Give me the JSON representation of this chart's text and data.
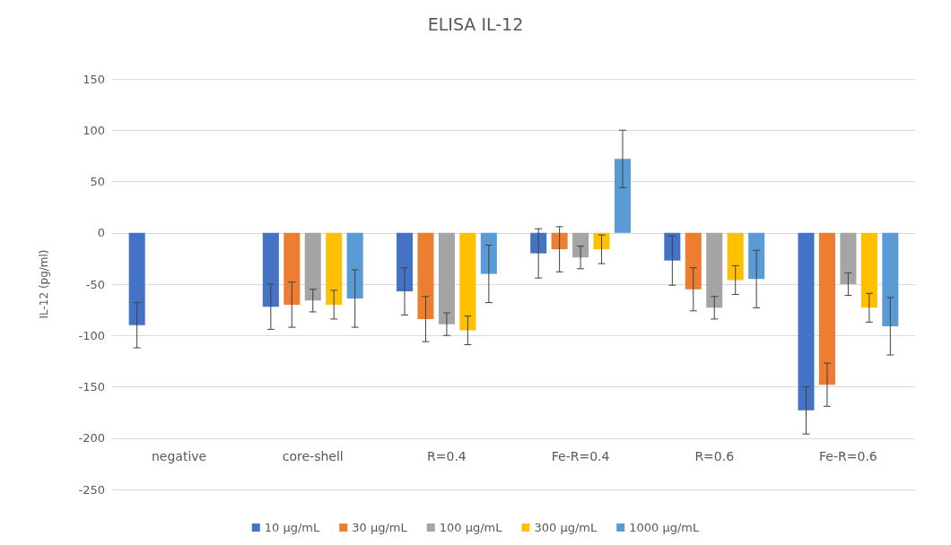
{
  "chart_data": {
    "type": "bar",
    "title": "ELISA IL-12",
    "ylabel": "IL-12 (pg/ml)",
    "categories": [
      "negative",
      "core-shell",
      "R=0.4",
      "Fe-R=0.4",
      "R=0.6",
      "Fe-R=0.6"
    ],
    "series": [
      {
        "name": "10 µg/mL",
        "color": "#4472c4",
        "values": [
          -90,
          -72,
          -57,
          -20,
          -27,
          -173
        ],
        "errors": [
          22,
          22,
          23,
          24,
          24,
          23
        ]
      },
      {
        "name": "30 µg/mL",
        "color": "#ed7d31",
        "values": [
          null,
          -70,
          -84,
          -16,
          -55,
          -148
        ],
        "errors": [
          null,
          22,
          22,
          22,
          21,
          21
        ]
      },
      {
        "name": "100 µg/mL",
        "color": "#a5a5a5",
        "values": [
          null,
          -66,
          -89,
          -24,
          -73,
          -50
        ],
        "errors": [
          null,
          11,
          11,
          11,
          11,
          11
        ]
      },
      {
        "name": "300 µg/mL",
        "color": "#ffc000",
        "values": [
          null,
          -70,
          -95,
          -16,
          -46,
          -73
        ],
        "errors": [
          null,
          14,
          14,
          14,
          14,
          14
        ]
      },
      {
        "name": "1000 µg/mL",
        "color": "#5b9bd5",
        "values": [
          null,
          -64,
          -40,
          72,
          -45,
          -91
        ],
        "errors": [
          null,
          28,
          28,
          28,
          28,
          28
        ]
      }
    ],
    "ylim": [
      -250,
      150
    ],
    "yticks": [
      -250,
      -200,
      -150,
      -100,
      -50,
      0,
      50,
      100,
      150
    ],
    "grid": "y",
    "legend": "bottom"
  }
}
